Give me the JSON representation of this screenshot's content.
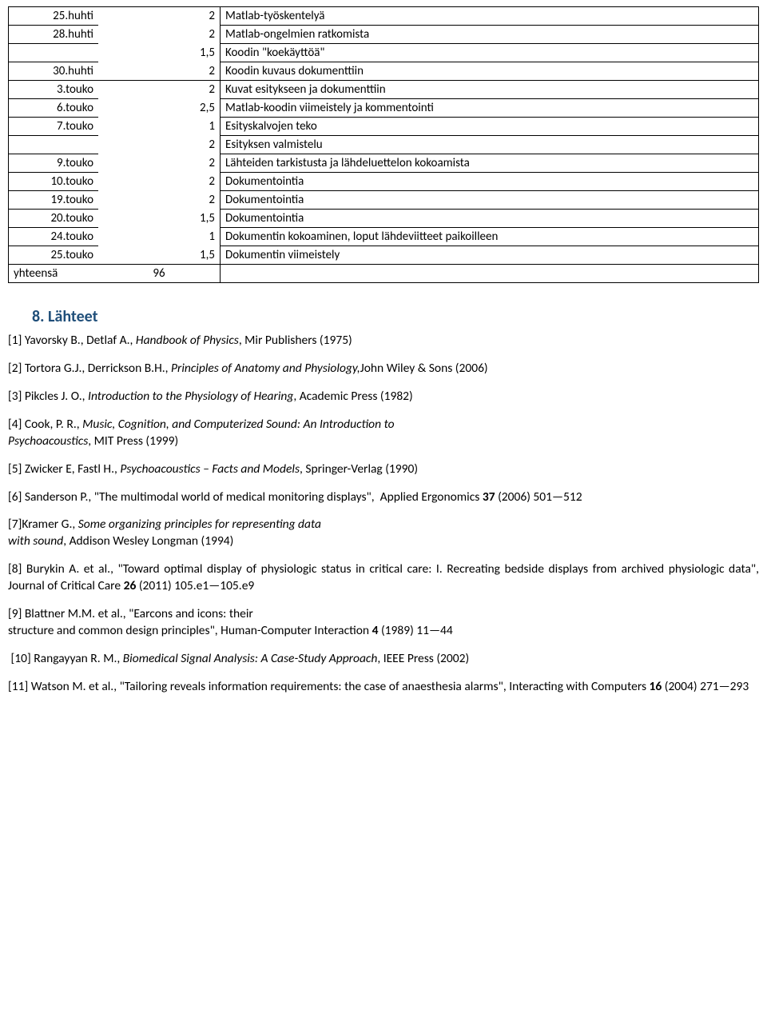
{
  "timesheet": {
    "rows": [
      {
        "date": "25.huhti",
        "hours": "2",
        "desc": "Matlab-työskentelyä",
        "group": "a",
        "first": true,
        "last": false
      },
      {
        "date": "28.huhti",
        "hours": "2",
        "desc": "Matlab-ongelmien ratkomista",
        "group": "a",
        "first": false,
        "last": false
      },
      {
        "date": "",
        "hours": "1,5",
        "desc": "Koodin \"koekäyttöä\"",
        "group": "a",
        "first": false,
        "last": false
      },
      {
        "date": "30.huhti",
        "hours": "2",
        "desc": "Koodin kuvaus dokumenttiin",
        "group": "a",
        "first": false,
        "last": true
      },
      {
        "date": "3.touko",
        "hours": "2",
        "desc": "Kuvat esitykseen ja dokumenttiin",
        "group": "b",
        "first": true,
        "last": false
      },
      {
        "date": "6.touko",
        "hours": "2,5",
        "desc": "Matlab-koodin viimeistely ja kommentointi",
        "group": "b",
        "first": false,
        "last": false
      },
      {
        "date": "7.touko",
        "hours": "1",
        "desc": "Esityskalvojen teko",
        "group": "b",
        "first": false,
        "last": false
      },
      {
        "date": "",
        "hours": "2",
        "desc": "Esityksen valmistelu",
        "group": "b",
        "first": false,
        "last": false
      },
      {
        "date": "9.touko",
        "hours": "2",
        "desc": "Lähteiden tarkistusta ja lähdeluettelon kokoamista",
        "group": "b",
        "first": false,
        "last": false
      },
      {
        "date": "10.touko",
        "hours": "2",
        "desc": "Dokumentointia",
        "group": "b",
        "first": false,
        "last": false
      },
      {
        "date": "19.touko",
        "hours": "2",
        "desc": "Dokumentointia",
        "group": "b",
        "first": false,
        "last": false
      },
      {
        "date": "20.touko",
        "hours": "1,5",
        "desc": "Dokumentointia",
        "group": "b",
        "first": false,
        "last": false
      },
      {
        "date": "24.touko",
        "hours": "1",
        "desc": "Dokumentin kokoaminen, loput lähdeviitteet paikoilleen",
        "group": "b",
        "first": false,
        "last": false
      },
      {
        "date": "25.touko",
        "hours": "1,5",
        "desc": "Dokumentin viimeistely",
        "group": "b",
        "first": false,
        "last": true
      }
    ],
    "total_label": "yhteensä",
    "total_value": "96"
  },
  "section_title": "8.  Lähteet",
  "references": [
    {
      "html": "[1] Yavorsky B.,  Detlaf A., <em>Handbook of Physics</em>, Mir Publishers (1975)"
    },
    {
      "html": "[2] Tortora G.J.,  Derrickson B.H., <em>Principles of Anatomy and Physiology,</em>John Wiley & Sons (2006)"
    },
    {
      "html": "[3] Pikcles J. O., <em>Introduction to the Physiology of Hearing</em>, Academic Press (1982)"
    },
    {
      "html": "[4] Cook, P. R., <em>Music, Cognition, and Computerized Sound: An Introduction to<br>Psychoacoustics</em>, MIT Press (1999)"
    },
    {
      "html": "[5] Zwicker E, Fastl H., <em>Psychoacoustics – Facts and Models</em>, Springer-Verlag (1990)"
    },
    {
      "html": "[6] Sanderson P., \"The multimodal world of medical monitoring displays\",&nbsp; Applied Ergonomics <b>37</b> (2006) 501—512"
    },
    {
      "html": "[7]Kramer G., <em>Some organizing principles for representing data<br>with sound</em>, Addison Wesley Longman (1994)"
    },
    {
      "html": "[8] Burykin A. et al., \"Toward optimal display of physiologic status in critical care: I. Recreating bedside displays from archived physiologic data\", Journal of Critical Care <b>26</b> (2011) 105.e1—105.e9"
    },
    {
      "html": "[9] Blattner M.M. et al., \"Earcons and icons: their<br>structure and common design principles\", Human-Computer Interaction <b>4</b> (1989) 11—44"
    },
    {
      "html": "&nbsp;[10] Rangayyan R. M., <em>Biomedical Signal Analysis: A Case-Study Approach</em>, IEEE Press (2002)"
    },
    {
      "html": "[11] Watson M. et al., \"Tailoring reveals information requirements: the case of anaesthesia alarms\", Interacting with Computers <b>16</b> (2004) 271—293"
    }
  ]
}
